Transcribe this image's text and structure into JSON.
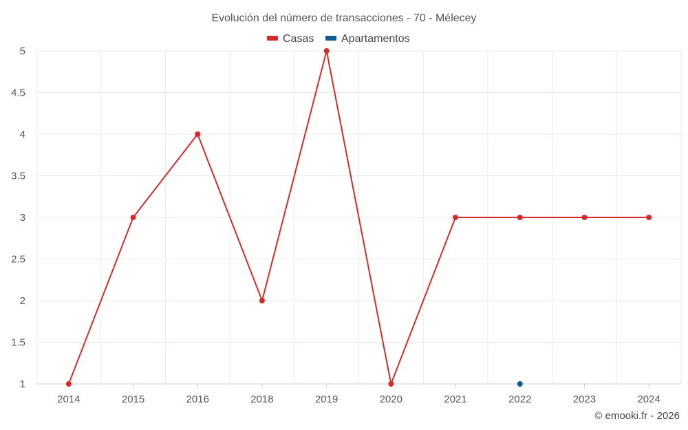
{
  "chart_data": {
    "type": "line",
    "title": "Evolución del número de transacciones - 70 - Mélecey",
    "categories": [
      "2014",
      "2015",
      "2016",
      "2018",
      "2019",
      "2020",
      "2021",
      "2022",
      "2023",
      "2024"
    ],
    "series": [
      {
        "name": "Casas",
        "color": "#d42a2a",
        "values": [
          1,
          3,
          4,
          2,
          5,
          1,
          3,
          3,
          3,
          3
        ]
      },
      {
        "name": "Apartamentos",
        "color": "#0f5e93",
        "values": [
          null,
          null,
          null,
          null,
          null,
          null,
          null,
          1,
          null,
          null
        ]
      }
    ],
    "yticks": [
      "1",
      "1.5",
      "2",
      "2.5",
      "3",
      "3.5",
      "4",
      "4.5",
      "5"
    ],
    "ylim": [
      1,
      5
    ],
    "grid": true,
    "legend_position": "top-center",
    "xlabel": "",
    "ylabel": ""
  },
  "credit": "© emooki.fr - 2026"
}
